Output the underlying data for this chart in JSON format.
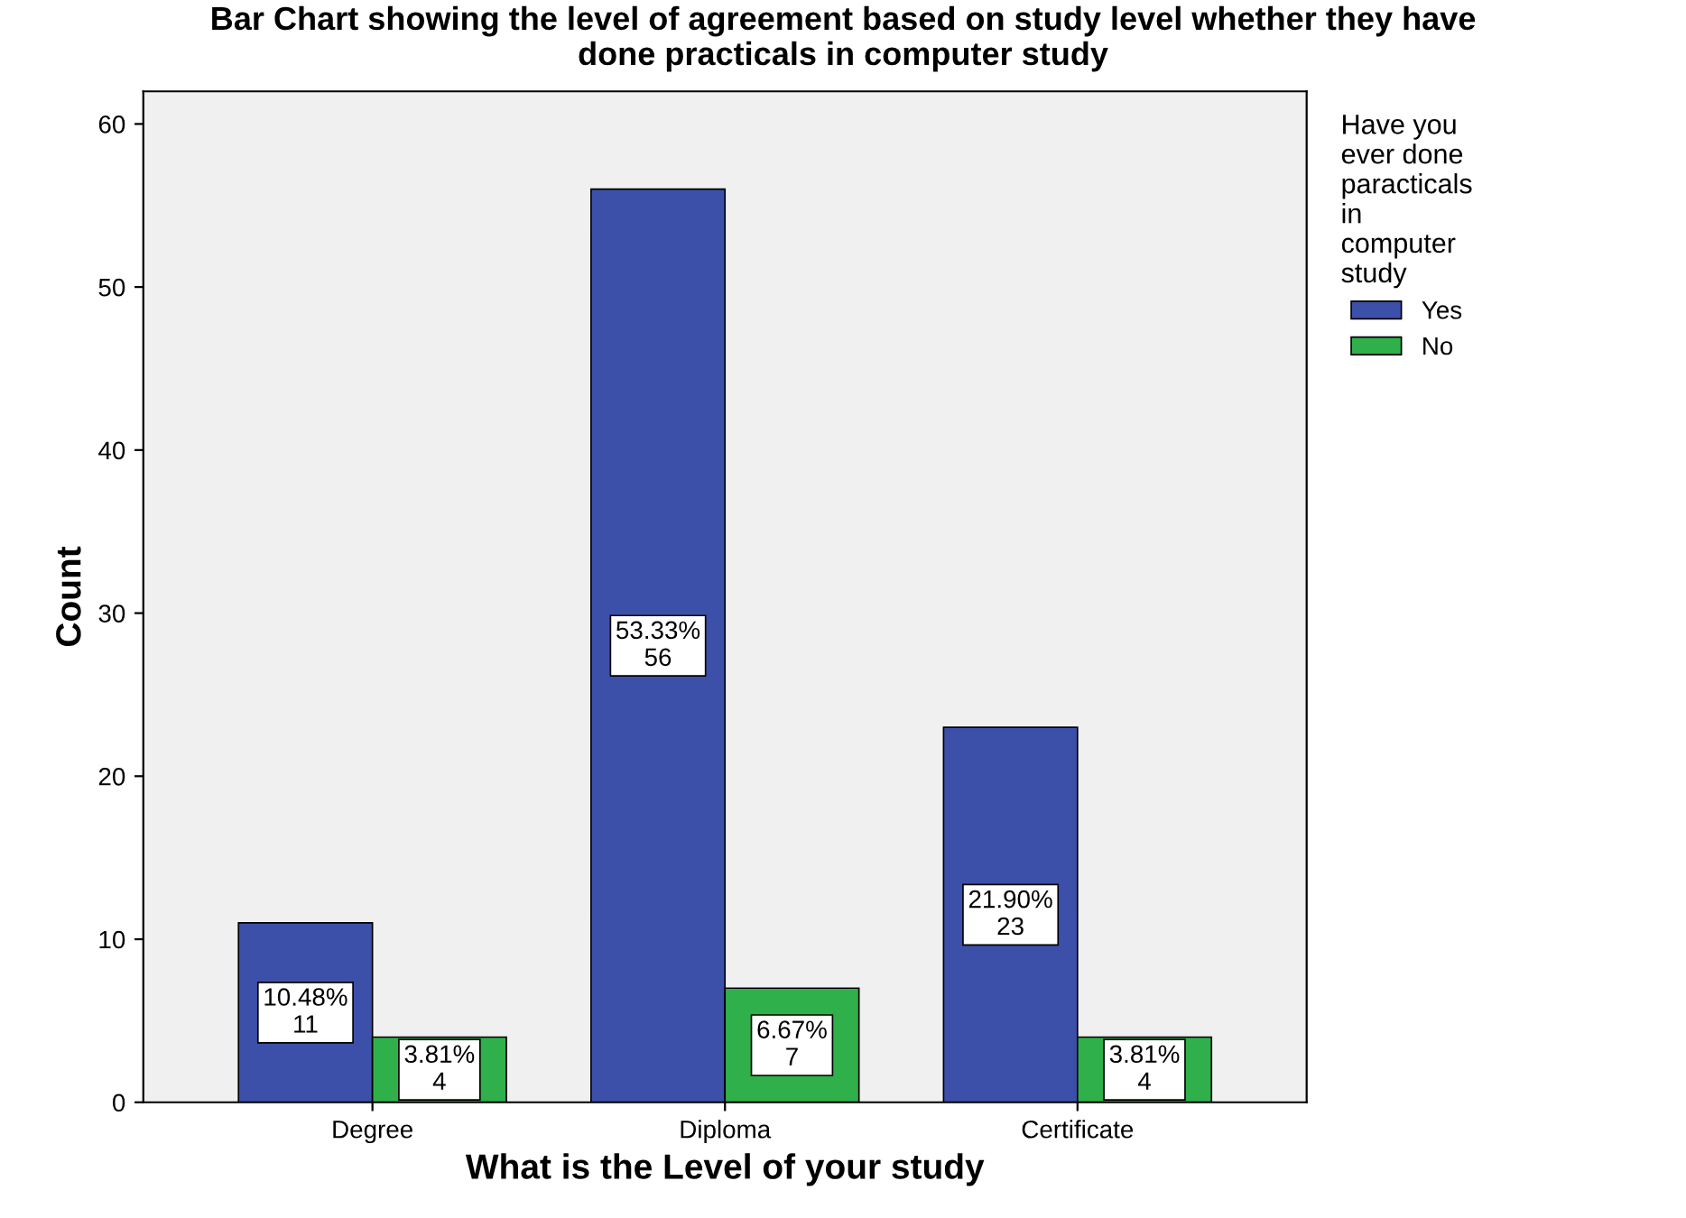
{
  "chart_data": {
    "type": "bar",
    "title": "Bar Chart showing the level of agreement based on study level whether they have\ndone practicals in computer study",
    "xlabel": "What is the Level of your study",
    "ylabel": "Count",
    "legend_title": "Have you\never done\nparacticals\nin\ncomputer\nstudy",
    "categories": [
      "Degree",
      "Diploma",
      "Certificate"
    ],
    "series": [
      {
        "name": "Yes",
        "color": "#3c50aa",
        "values": [
          11,
          56,
          23
        ],
        "value_labels": [
          "10.48%\n11",
          "53.33%\n56",
          "21.90%\n23"
        ]
      },
      {
        "name": "No",
        "color": "#2fb04a",
        "values": [
          4,
          7,
          4
        ],
        "value_labels": [
          "3.81%\n4",
          "6.67%\n7",
          "3.81%\n4"
        ]
      }
    ],
    "ylim": [
      0,
      62
    ],
    "yticks": [
      0,
      10,
      20,
      30,
      40,
      50,
      60
    ],
    "grid": false,
    "legend": "right"
  }
}
